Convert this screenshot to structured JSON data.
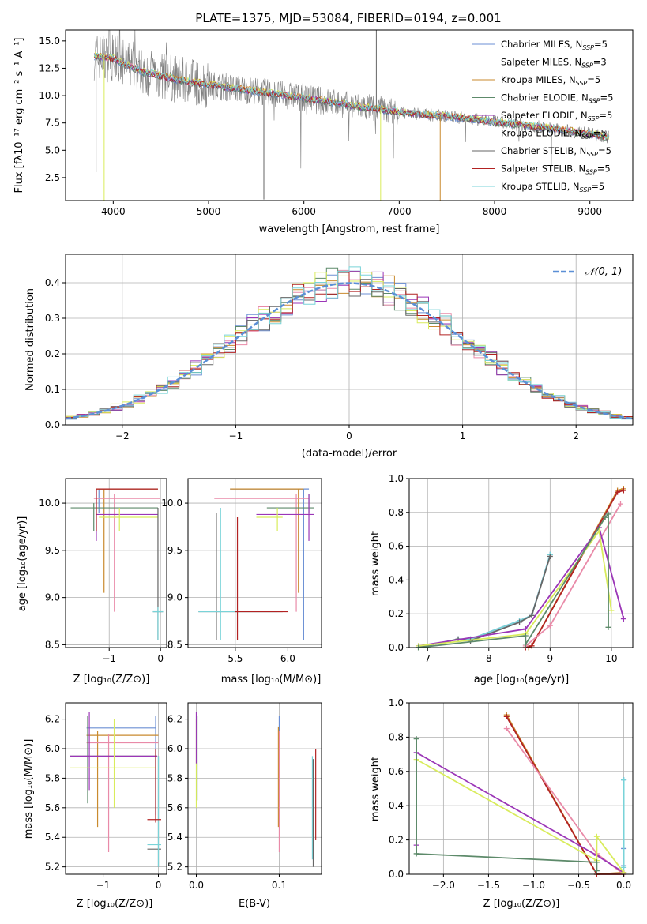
{
  "figure_title": "PLATE=1375, MJD=53084, FIBERID=0194, z=0.001",
  "colors": {
    "chabrier_miles": "#6b8fd4",
    "salpeter_miles": "#e98aa8",
    "kroupa_miles": "#c98a2e",
    "chabrier_elodie": "#5d8a6a",
    "salpeter_elodie": "#9b36b7",
    "kroupa_elodie": "#d9ec5c",
    "chabrier_stelib": "#666666",
    "salpeter_stelib": "#b22222",
    "kroupa_stelib": "#79d3d8",
    "normal": "#5b8fd6",
    "grid": "#b0b0b0"
  },
  "chart_data": [
    {
      "id": "spectrum",
      "type": "line",
      "xlabel": "wavelength [Angstrom, rest frame]",
      "ylabel": "Flux [fλ10⁻¹⁷ erg cm⁻² s⁻¹ A⁻¹]",
      "xlim": [
        3500,
        9450
      ],
      "ylim": [
        0.4,
        16
      ],
      "xticks": [
        "4000",
        "5000",
        "6000",
        "7000",
        "8000",
        "9000"
      ],
      "yticks": [
        "2.5",
        "5.0",
        "7.5",
        "10.0",
        "12.5",
        "15.0"
      ],
      "legend_position": "top-right",
      "legend": [
        "Chabrier MILES, N_SSP=5",
        "Salpeter MILES, N_SSP=3",
        "Kroupa MILES, N_SSP=5",
        "Chabrier ELODIE, N_SSP=5",
        "Salpeter ELODIE, N_SSP=5",
        "Kroupa ELODIE, N_SSP=5",
        "Chabrier STELIB, N_SSP=5",
        "Salpeter STELIB, N_SSP=5",
        "Kroupa STELIB, N_SSP=5"
      ],
      "continuum": [
        [
          3800,
          13.6
        ],
        [
          4000,
          13.4
        ],
        [
          4300,
          12.2
        ],
        [
          4700,
          11.4
        ],
        [
          5000,
          11.0
        ],
        [
          5500,
          10.4
        ],
        [
          6000,
          9.8
        ],
        [
          6500,
          9.1
        ],
        [
          7000,
          8.5
        ],
        [
          7500,
          8.1
        ],
        [
          8000,
          7.6
        ],
        [
          8500,
          7.1
        ],
        [
          9000,
          6.5
        ],
        [
          9200,
          6.2
        ]
      ]
    },
    {
      "id": "residuals",
      "type": "line",
      "xlabel": "(data-model)/error",
      "ylabel": "Normed distribution",
      "xlim": [
        -2.5,
        2.5
      ],
      "ylim": [
        0,
        0.48
      ],
      "xticks": [
        "−2",
        "−1",
        "0",
        "1",
        "2"
      ],
      "yticks": [
        "0.0",
        "0.1",
        "0.2",
        "0.3",
        "0.4"
      ],
      "legend_position": "top-right",
      "legend": [
        "𝒩(0, 1)"
      ],
      "grid": true
    },
    {
      "id": "age_vs_Z",
      "type": "scatter",
      "xlabel": "Z [log₁₀(Z/Z⊙)]",
      "ylabel": "age  [log₁₀(age/yr)]",
      "xlim": [
        -1.85,
        0.12
      ],
      "ylim": [
        8.47,
        10.26
      ],
      "xticks": [
        "−1",
        "0"
      ],
      "yticks": [
        "8.5",
        "9.0",
        "9.5",
        "10.0"
      ],
      "grid": true
    },
    {
      "id": "age_vs_mass",
      "type": "scatter",
      "xlabel": "mass [log₁₀(M/M⊙)]",
      "ylabel": "",
      "xlim": [
        5.05,
        6.32
      ],
      "ylim": [
        8.47,
        10.26
      ],
      "xticks": [
        "5.5",
        "6.0"
      ],
      "yticks": [
        "8.5",
        "9.0",
        "9.5",
        "10.0"
      ],
      "grid": true
    },
    {
      "id": "weight_vs_age",
      "type": "line",
      "xlabel": "age  [log₁₀(age/yr)]",
      "ylabel": "mass weight",
      "xlim": [
        6.7,
        10.35
      ],
      "ylim": [
        0,
        1.0
      ],
      "xticks": [
        "7",
        "8",
        "9",
        "10"
      ],
      "yticks": [
        "0.0",
        "0.2",
        "0.4",
        "0.6",
        "0.8",
        "1.0"
      ],
      "grid": true,
      "series": [
        {
          "color": "chabrier_miles",
          "x": [
            6.85,
            7.5,
            7.7,
            8.5,
            8.7,
            9.0
          ],
          "y": [
            0.0,
            0.05,
            0.05,
            0.16,
            0.19,
            0.55
          ]
        },
        {
          "color": "kroupa_stelib",
          "x": [
            6.85,
            7.5,
            7.7,
            8.5,
            8.7,
            9.0
          ],
          "y": [
            0.0,
            0.05,
            0.05,
            0.16,
            0.19,
            0.55
          ]
        },
        {
          "color": "chabrier_stelib",
          "x": [
            6.85,
            7.5,
            7.7,
            8.5,
            8.7,
            9.0
          ],
          "y": [
            0.0,
            0.05,
            0.04,
            0.15,
            0.19,
            0.54
          ]
        },
        {
          "color": "kroupa_miles",
          "x": [
            8.6,
            8.65,
            8.7,
            10.1,
            10.2
          ],
          "y": [
            0.0,
            0.0,
            0.01,
            0.93,
            0.94
          ]
        },
        {
          "color": "salpeter_stelib",
          "x": [
            8.6,
            8.7,
            10.1,
            10.2
          ],
          "y": [
            0.0,
            0.01,
            0.92,
            0.93
          ]
        },
        {
          "color": "salpeter_miles",
          "x": [
            8.6,
            9.0,
            10.15
          ],
          "y": [
            0.01,
            0.13,
            0.85
          ]
        },
        {
          "color": "salpeter_elodie",
          "x": [
            6.85,
            8.6,
            9.8,
            10.2
          ],
          "y": [
            0.01,
            0.11,
            0.71,
            0.17
          ]
        },
        {
          "color": "kroupa_elodie",
          "x": [
            6.85,
            8.6,
            9.8,
            10.0
          ],
          "y": [
            0.01,
            0.08,
            0.69,
            0.22
          ]
        },
        {
          "color": "chabrier_elodie",
          "x": [
            6.85,
            8.6,
            8.6,
            9.9,
            9.95,
            9.95
          ],
          "y": [
            0.0,
            0.07,
            0.02,
            0.77,
            0.79,
            0.12
          ]
        }
      ]
    },
    {
      "id": "mass_vs_Z",
      "type": "scatter",
      "xlabel": "Z [log₁₀(Z/Z⊙)]",
      "ylabel": "mass [log₁₀(M/M⊙)]",
      "xlim": [
        -1.68,
        0.15
      ],
      "ylim": [
        5.15,
        6.31
      ],
      "xticks": [
        "−1",
        "0"
      ],
      "yticks": [
        "5.2",
        "5.4",
        "5.6",
        "5.8",
        "6.0",
        "6.2"
      ],
      "grid": true
    },
    {
      "id": "mass_vs_EBV",
      "type": "scatter",
      "xlabel": "E(B-V)",
      "ylabel": "",
      "xlim": [
        -0.01,
        0.151
      ],
      "ylim": [
        5.15,
        6.31
      ],
      "xticks": [
        "0.0",
        "0.1"
      ],
      "yticks": [
        "5.2",
        "5.4",
        "5.6",
        "5.8",
        "6.0",
        "6.2"
      ],
      "grid": true
    },
    {
      "id": "weight_vs_Z",
      "type": "line",
      "xlabel": "Z [log₁₀(Z/Z⊙)]",
      "ylabel": "mass weight",
      "xlim": [
        -2.38,
        0.1
      ],
      "ylim": [
        0,
        1.0
      ],
      "xticks": [
        "−2.0",
        "−1.5",
        "−1.0",
        "−0.5",
        "0.0"
      ],
      "yticks": [
        "0.0",
        "0.2",
        "0.4",
        "0.6",
        "0.8",
        "1.0"
      ],
      "grid": true,
      "series": [
        {
          "color": "chabrier_miles",
          "x": [
            0.0,
            0.0,
            0.0
          ],
          "y": [
            0.55,
            0.15,
            0.05
          ]
        },
        {
          "color": "kroupa_stelib",
          "x": [
            0.0,
            0.0
          ],
          "y": [
            0.55,
            0.04
          ]
        },
        {
          "color": "kroupa_miles",
          "x": [
            -1.3,
            -0.3,
            0.0
          ],
          "y": [
            0.93,
            0.0,
            0.01
          ]
        },
        {
          "color": "salpeter_stelib",
          "x": [
            -1.3,
            -0.3,
            0.0
          ],
          "y": [
            0.92,
            0.0,
            0.0
          ]
        },
        {
          "color": "salpeter_miles",
          "x": [
            -1.3,
            -0.3,
            0.0
          ],
          "y": [
            0.85,
            0.12,
            0.0
          ]
        },
        {
          "color": "salpeter_elodie",
          "x": [
            -2.3,
            -2.3,
            -0.3,
            0.0
          ],
          "y": [
            0.17,
            0.71,
            0.11,
            0.01
          ]
        },
        {
          "color": "kroupa_elodie",
          "x": [
            -2.3,
            -0.3,
            -0.3,
            0.0
          ],
          "y": [
            0.67,
            0.08,
            0.22,
            0.01
          ]
        },
        {
          "color": "chabrier_elodie",
          "x": [
            -2.3,
            -2.3,
            -0.3,
            -0.3
          ],
          "y": [
            0.79,
            0.12,
            0.07,
            0.02
          ]
        }
      ]
    }
  ]
}
